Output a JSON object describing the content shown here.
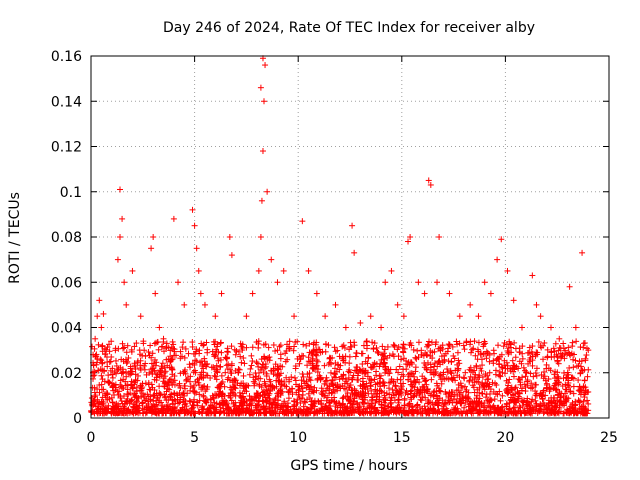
{
  "chart_data": {
    "type": "scatter",
    "title": "Day 246 of 2024, Rate Of TEC Index for receiver alby",
    "xlabel": "GPS time / hours",
    "ylabel": "ROTI / TECUs",
    "xlim": [
      0,
      25
    ],
    "ylim": [
      0,
      0.16
    ],
    "x_ticks": [
      0,
      5,
      10,
      15,
      20,
      25
    ],
    "x_tick_labels": [
      "0",
      "5",
      "10",
      "15",
      "20",
      "25"
    ],
    "y_ticks": [
      0,
      0.02,
      0.04,
      0.06,
      0.08,
      0.1,
      0.12,
      0.14,
      0.16
    ],
    "y_tick_labels": [
      "0",
      "0.02",
      "0.04",
      "0.06",
      "0.08",
      "0.1",
      "0.12",
      "0.14",
      "0.16"
    ],
    "grid": true,
    "marker": "+",
    "color": "#ff0000",
    "series": [
      {
        "name": "ROTI",
        "x": [
          0.1,
          0.2,
          0.3,
          0.4,
          0.5,
          0.6,
          1.3,
          1.4,
          1.5,
          1.4,
          1.6,
          1.7,
          2.0,
          2.4,
          2.9,
          3.0,
          3.1,
          3.3,
          3.5,
          4.0,
          4.2,
          4.5,
          4.9,
          5.0,
          5.1,
          5.2,
          5.3,
          5.5,
          6.0,
          6.3,
          6.7,
          6.8,
          7.5,
          7.8,
          8.1,
          8.2,
          8.25,
          8.3,
          8.35,
          8.2,
          8.4,
          8.3,
          8.5,
          8.7,
          9.0,
          9.3,
          9.8,
          10.2,
          10.5,
          10.9,
          11.3,
          11.8,
          12.3,
          12.6,
          12.7,
          13.0,
          13.5,
          14.0,
          14.2,
          14.5,
          14.8,
          15.1,
          15.3,
          15.4,
          15.8,
          16.1,
          16.3,
          16.4,
          16.7,
          16.8,
          17.3,
          17.8,
          18.3,
          18.7,
          19.0,
          19.3,
          19.6,
          19.8,
          20.1,
          20.4,
          20.8,
          21.3,
          21.5,
          21.7,
          22.2,
          22.6,
          23.1,
          23.4,
          23.7,
          24.0
        ],
        "y": [
          0.028,
          0.035,
          0.045,
          0.052,
          0.04,
          0.046,
          0.07,
          0.08,
          0.088,
          0.101,
          0.06,
          0.05,
          0.065,
          0.045,
          0.075,
          0.08,
          0.055,
          0.04,
          0.035,
          0.088,
          0.06,
          0.05,
          0.092,
          0.085,
          0.075,
          0.065,
          0.055,
          0.05,
          0.045,
          0.055,
          0.08,
          0.072,
          0.045,
          0.055,
          0.065,
          0.08,
          0.096,
          0.118,
          0.14,
          0.146,
          0.156,
          0.159,
          0.1,
          0.07,
          0.06,
          0.065,
          0.045,
          0.087,
          0.065,
          0.055,
          0.045,
          0.05,
          0.04,
          0.085,
          0.073,
          0.042,
          0.045,
          0.04,
          0.06,
          0.065,
          0.05,
          0.045,
          0.078,
          0.08,
          0.06,
          0.055,
          0.105,
          0.103,
          0.06,
          0.08,
          0.055,
          0.045,
          0.05,
          0.045,
          0.06,
          0.055,
          0.07,
          0.079,
          0.065,
          0.052,
          0.04,
          0.063,
          0.05,
          0.045,
          0.04,
          0.035,
          0.058,
          0.04,
          0.073,
          0.03
        ]
      }
    ]
  }
}
